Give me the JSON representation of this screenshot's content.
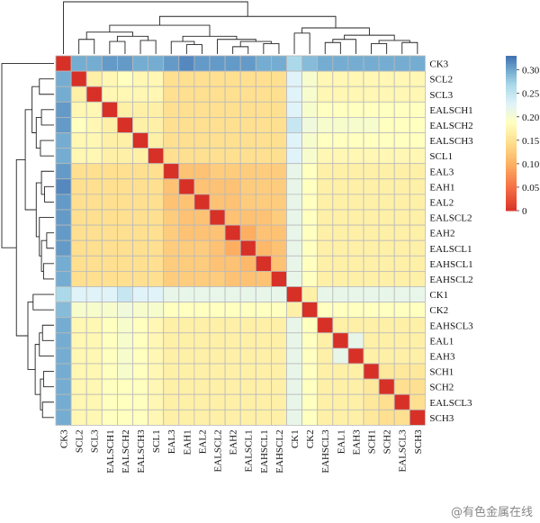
{
  "chart_data": {
    "type": "heatmap",
    "title": "",
    "labels": [
      "CK3",
      "SCL2",
      "SCL3",
      "EALSCH1",
      "EALSCH2",
      "EALSCH3",
      "SCL1",
      "EAL3",
      "EAH1",
      "EAL2",
      "EALSCL2",
      "EAH2",
      "EALSCL1",
      "EAHSCL1",
      "EAHSCL2",
      "CK1",
      "CK2",
      "EAHSCL3",
      "EAL1",
      "EAH3",
      "SCH1",
      "SCH2",
      "EALSCL3",
      "SCH3"
    ],
    "colorbar": {
      "ticks": [
        0,
        0.05,
        0.1,
        0.15,
        0.2,
        0.25,
        0.3
      ],
      "tick_labels": [
        "0",
        "0.05",
        "0.10",
        "0.15",
        "0.20",
        "0.25",
        "0.30"
      ],
      "min": 0,
      "max": 0.33
    },
    "colorscale": [
      {
        "v": 0.0,
        "c": "#d73027"
      },
      {
        "v": 0.05,
        "c": "#f46d43"
      },
      {
        "v": 0.1,
        "c": "#fdae61"
      },
      {
        "v": 0.15,
        "c": "#fee090"
      },
      {
        "v": 0.19,
        "c": "#ffffbf"
      },
      {
        "v": 0.23,
        "c": "#e0f3f8"
      },
      {
        "v": 0.27,
        "c": "#abd9e9"
      },
      {
        "v": 0.3,
        "c": "#74add1"
      },
      {
        "v": 0.33,
        "c": "#4575b4"
      }
    ],
    "values": [
      [
        0,
        0.3,
        0.3,
        0.31,
        0.31,
        0.3,
        0.3,
        0.31,
        0.32,
        0.31,
        0.31,
        0.31,
        0.31,
        0.3,
        0.3,
        0.27,
        0.29,
        0.3,
        0.3,
        0.3,
        0.3,
        0.3,
        0.3,
        0.3
      ],
      [
        0.3,
        0,
        0.17,
        0.18,
        0.19,
        0.18,
        0.18,
        0.15,
        0.15,
        0.15,
        0.15,
        0.15,
        0.15,
        0.15,
        0.15,
        0.23,
        0.2,
        0.18,
        0.18,
        0.18,
        0.18,
        0.18,
        0.18,
        0.18
      ],
      [
        0.3,
        0.17,
        0,
        0.18,
        0.18,
        0.18,
        0.18,
        0.15,
        0.15,
        0.15,
        0.15,
        0.15,
        0.15,
        0.15,
        0.15,
        0.23,
        0.2,
        0.18,
        0.18,
        0.18,
        0.18,
        0.18,
        0.18,
        0.18
      ],
      [
        0.31,
        0.18,
        0.18,
        0,
        0.17,
        0.17,
        0.17,
        0.15,
        0.15,
        0.15,
        0.15,
        0.15,
        0.15,
        0.15,
        0.15,
        0.23,
        0.2,
        0.19,
        0.19,
        0.19,
        0.19,
        0.19,
        0.19,
        0.19
      ],
      [
        0.31,
        0.19,
        0.18,
        0.17,
        0,
        0.17,
        0.17,
        0.15,
        0.15,
        0.15,
        0.15,
        0.15,
        0.15,
        0.15,
        0.15,
        0.25,
        0.21,
        0.2,
        0.2,
        0.2,
        0.2,
        0.19,
        0.19,
        0.19
      ],
      [
        0.3,
        0.18,
        0.18,
        0.17,
        0.17,
        0,
        0.17,
        0.15,
        0.15,
        0.15,
        0.15,
        0.15,
        0.15,
        0.15,
        0.15,
        0.23,
        0.2,
        0.19,
        0.19,
        0.19,
        0.19,
        0.19,
        0.19,
        0.19
      ],
      [
        0.3,
        0.18,
        0.18,
        0.17,
        0.17,
        0.17,
        0,
        0.15,
        0.15,
        0.15,
        0.15,
        0.15,
        0.15,
        0.15,
        0.15,
        0.23,
        0.2,
        0.18,
        0.18,
        0.18,
        0.18,
        0.18,
        0.18,
        0.18
      ],
      [
        0.31,
        0.15,
        0.15,
        0.15,
        0.15,
        0.15,
        0.15,
        0,
        0.12,
        0.12,
        0.13,
        0.13,
        0.13,
        0.13,
        0.13,
        0.22,
        0.19,
        0.17,
        0.17,
        0.17,
        0.17,
        0.17,
        0.17,
        0.17
      ],
      [
        0.32,
        0.15,
        0.15,
        0.15,
        0.15,
        0.15,
        0.15,
        0.12,
        0,
        0.12,
        0.12,
        0.12,
        0.13,
        0.13,
        0.13,
        0.22,
        0.19,
        0.17,
        0.17,
        0.17,
        0.17,
        0.17,
        0.17,
        0.17
      ],
      [
        0.31,
        0.15,
        0.15,
        0.15,
        0.15,
        0.15,
        0.15,
        0.12,
        0.12,
        0,
        0.12,
        0.12,
        0.13,
        0.13,
        0.13,
        0.22,
        0.19,
        0.17,
        0.17,
        0.17,
        0.17,
        0.17,
        0.17,
        0.17
      ],
      [
        0.31,
        0.15,
        0.15,
        0.15,
        0.15,
        0.15,
        0.15,
        0.13,
        0.12,
        0.12,
        0,
        0.12,
        0.12,
        0.12,
        0.13,
        0.22,
        0.19,
        0.17,
        0.17,
        0.17,
        0.17,
        0.17,
        0.17,
        0.17
      ],
      [
        0.31,
        0.15,
        0.15,
        0.15,
        0.15,
        0.15,
        0.15,
        0.13,
        0.12,
        0.12,
        0.12,
        0,
        0.1,
        0.12,
        0.12,
        0.22,
        0.19,
        0.17,
        0.17,
        0.17,
        0.17,
        0.17,
        0.17,
        0.17
      ],
      [
        0.31,
        0.15,
        0.15,
        0.15,
        0.15,
        0.15,
        0.15,
        0.13,
        0.13,
        0.13,
        0.12,
        0.1,
        0,
        0.11,
        0.12,
        0.22,
        0.19,
        0.17,
        0.17,
        0.17,
        0.17,
        0.17,
        0.17,
        0.17
      ],
      [
        0.3,
        0.15,
        0.15,
        0.15,
        0.15,
        0.15,
        0.15,
        0.13,
        0.13,
        0.13,
        0.12,
        0.12,
        0.11,
        0,
        0.12,
        0.22,
        0.19,
        0.17,
        0.17,
        0.17,
        0.17,
        0.17,
        0.17,
        0.17
      ],
      [
        0.3,
        0.15,
        0.15,
        0.15,
        0.15,
        0.15,
        0.15,
        0.13,
        0.13,
        0.13,
        0.13,
        0.12,
        0.12,
        0.12,
        0,
        0.22,
        0.19,
        0.17,
        0.17,
        0.17,
        0.17,
        0.17,
        0.17,
        0.17
      ],
      [
        0.27,
        0.23,
        0.23,
        0.23,
        0.25,
        0.23,
        0.23,
        0.22,
        0.22,
        0.22,
        0.22,
        0.22,
        0.22,
        0.22,
        0.22,
        0,
        0.17,
        0.22,
        0.22,
        0.22,
        0.22,
        0.22,
        0.22,
        0.22
      ],
      [
        0.29,
        0.2,
        0.2,
        0.2,
        0.21,
        0.2,
        0.2,
        0.19,
        0.19,
        0.19,
        0.19,
        0.19,
        0.19,
        0.19,
        0.19,
        0.17,
        0,
        0.19,
        0.19,
        0.19,
        0.19,
        0.19,
        0.19,
        0.19
      ],
      [
        0.3,
        0.18,
        0.18,
        0.19,
        0.2,
        0.19,
        0.18,
        0.17,
        0.17,
        0.17,
        0.17,
        0.17,
        0.17,
        0.17,
        0.17,
        0.22,
        0.19,
        0,
        0.17,
        0.17,
        0.17,
        0.17,
        0.17,
        0.17
      ],
      [
        0.3,
        0.18,
        0.18,
        0.19,
        0.2,
        0.19,
        0.18,
        0.17,
        0.17,
        0.17,
        0.17,
        0.17,
        0.17,
        0.17,
        0.17,
        0.22,
        0.19,
        0.17,
        0,
        0.22,
        0.17,
        0.17,
        0.17,
        0.17
      ],
      [
        0.3,
        0.18,
        0.18,
        0.19,
        0.2,
        0.19,
        0.18,
        0.17,
        0.17,
        0.17,
        0.17,
        0.17,
        0.17,
        0.17,
        0.17,
        0.22,
        0.19,
        0.17,
        0.22,
        0,
        0.17,
        0.17,
        0.17,
        0.17
      ],
      [
        0.3,
        0.18,
        0.18,
        0.19,
        0.2,
        0.19,
        0.18,
        0.17,
        0.17,
        0.17,
        0.17,
        0.17,
        0.17,
        0.17,
        0.17,
        0.22,
        0.19,
        0.17,
        0.17,
        0.17,
        0,
        0.16,
        0.16,
        0.16
      ],
      [
        0.3,
        0.18,
        0.18,
        0.19,
        0.19,
        0.19,
        0.18,
        0.17,
        0.17,
        0.17,
        0.17,
        0.17,
        0.17,
        0.17,
        0.17,
        0.22,
        0.19,
        0.17,
        0.17,
        0.17,
        0.16,
        0,
        0.15,
        0.15
      ],
      [
        0.3,
        0.18,
        0.18,
        0.19,
        0.19,
        0.19,
        0.18,
        0.17,
        0.17,
        0.17,
        0.17,
        0.17,
        0.17,
        0.17,
        0.17,
        0.22,
        0.19,
        0.17,
        0.17,
        0.17,
        0.16,
        0.15,
        0,
        0.15
      ],
      [
        0.3,
        0.18,
        0.18,
        0.19,
        0.19,
        0.19,
        0.18,
        0.17,
        0.17,
        0.17,
        0.17,
        0.17,
        0.17,
        0.17,
        0.17,
        0.22,
        0.19,
        0.17,
        0.17,
        0.17,
        0.16,
        0.15,
        0.15,
        0
      ]
    ],
    "dendrogram": "present (top and left)",
    "legend_position": "right"
  },
  "watermark": "@有色金属在线"
}
